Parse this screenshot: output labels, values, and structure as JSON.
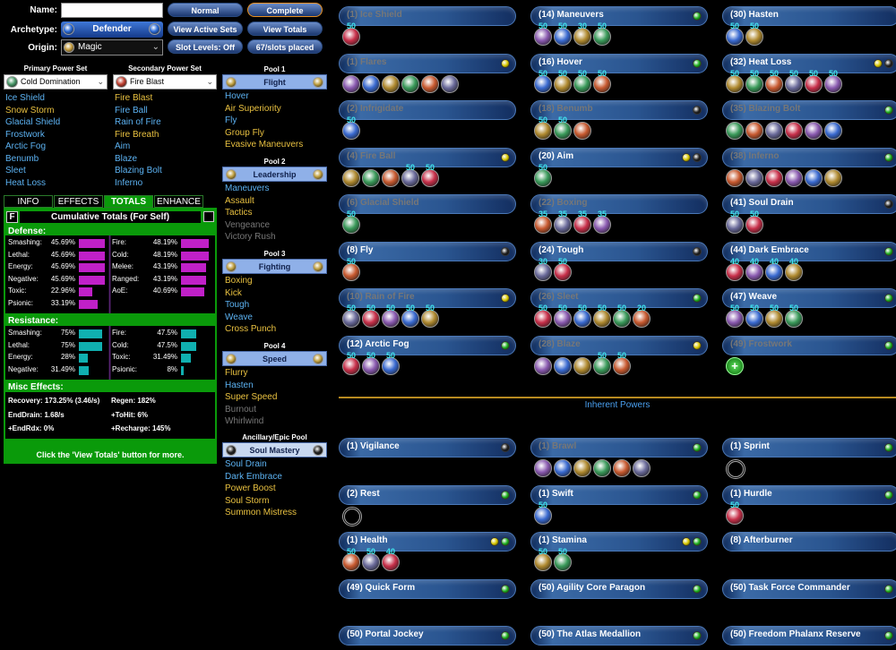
{
  "header": {
    "name_label": "Name:",
    "archetype_label": "Archetype:",
    "archetype": "Defender",
    "origin_label": "Origin:",
    "origin": "Magic"
  },
  "buttons": [
    "Normal",
    "Complete",
    "View Active Sets",
    "View Totals",
    "Slot Levels: Off",
    "67/slots placed"
  ],
  "primary": {
    "label": "Primary Power Set",
    "set": "Cold Domination",
    "powers": [
      {
        "name": "Ice Shield",
        "color": "#5cb2f2"
      },
      {
        "name": "Snow Storm",
        "color": "#e8c040"
      },
      {
        "name": "Glacial Shield",
        "color": "#5cb2f2"
      },
      {
        "name": "Frostwork",
        "color": "#5cb2f2"
      },
      {
        "name": "Arctic Fog",
        "color": "#5cb2f2"
      },
      {
        "name": "Benumb",
        "color": "#5cb2f2"
      },
      {
        "name": "Sleet",
        "color": "#5cb2f2"
      },
      {
        "name": "Heat Loss",
        "color": "#5cb2f2"
      }
    ]
  },
  "secondary": {
    "label": "Secondary Power Set",
    "set": "Fire Blast",
    "powers": [
      {
        "name": "Fire Blast",
        "color": "#e8c040"
      },
      {
        "name": "Fire Ball",
        "color": "#5cb2f2"
      },
      {
        "name": "Rain of Fire",
        "color": "#5cb2f2"
      },
      {
        "name": "Fire Breath",
        "color": "#e8c040"
      },
      {
        "name": "Aim",
        "color": "#5cb2f2"
      },
      {
        "name": "Blaze",
        "color": "#5cb2f2"
      },
      {
        "name": "Blazing Bolt",
        "color": "#5cb2f2"
      },
      {
        "name": "Inferno",
        "color": "#5cb2f2"
      }
    ]
  },
  "pools": [
    {
      "label": "Pool 1",
      "name": "Flight",
      "powers": [
        {
          "name": "Hover",
          "color": "#5cb2f2"
        },
        {
          "name": "Air Superiority",
          "color": "#e8c040"
        },
        {
          "name": "Fly",
          "color": "#5cb2f2"
        },
        {
          "name": "Group Fly",
          "color": "#e8c040"
        },
        {
          "name": "Evasive Maneuvers",
          "color": "#e8c040"
        }
      ]
    },
    {
      "label": "Pool 2",
      "name": "Leadership",
      "powers": [
        {
          "name": "Maneuvers",
          "color": "#5cb2f2"
        },
        {
          "name": "Assault",
          "color": "#e8c040"
        },
        {
          "name": "Tactics",
          "color": "#e8c040"
        },
        {
          "name": "Vengeance",
          "color": "#777777"
        },
        {
          "name": "Victory Rush",
          "color": "#777777"
        }
      ]
    },
    {
      "label": "Pool 3",
      "name": "Fighting",
      "powers": [
        {
          "name": "Boxing",
          "color": "#e8c040"
        },
        {
          "name": "Kick",
          "color": "#e8c040"
        },
        {
          "name": "Tough",
          "color": "#5cb2f2"
        },
        {
          "name": "Weave",
          "color": "#5cb2f2"
        },
        {
          "name": "Cross Punch",
          "color": "#e8c040"
        }
      ]
    },
    {
      "label": "Pool 4",
      "name": "Speed",
      "powers": [
        {
          "name": "Flurry",
          "color": "#e8c040"
        },
        {
          "name": "Hasten",
          "color": "#5cb2f2"
        },
        {
          "name": "Super Speed",
          "color": "#e8c040"
        },
        {
          "name": "Burnout",
          "color": "#777777"
        },
        {
          "name": "Whirlwind",
          "color": "#777777"
        }
      ]
    },
    {
      "label": "Ancillary/Epic Pool",
      "name": "Soul Mastery",
      "powers": [
        {
          "name": "Soul Drain",
          "color": "#5cb2f2"
        },
        {
          "name": "Dark Embrace",
          "color": "#5cb2f2"
        },
        {
          "name": "Power Boost",
          "color": "#e8c040"
        },
        {
          "name": "Soul Storm",
          "color": "#e8c040"
        },
        {
          "name": "Summon Mistress",
          "color": "#e8c040"
        }
      ]
    }
  ],
  "tabs": [
    "INFO",
    "EFFECTS",
    "TOTALS",
    "ENHANCE"
  ],
  "totals": {
    "toggle": "F",
    "title": "Cumulative Totals (For Self)",
    "defense": {
      "title": "Defense:",
      "left": [
        {
          "label": "Smashing:",
          "value": 45.69,
          "value_label": "45.69%"
        },
        {
          "label": "Lethal:",
          "value": 45.69,
          "value_label": "45.69%"
        },
        {
          "label": "Energy:",
          "value": 45.69,
          "value_label": "45.69%"
        },
        {
          "label": "Negative:",
          "value": 45.69,
          "value_label": "45.69%"
        },
        {
          "label": "Toxic:",
          "value": 22.96,
          "value_label": "22.96%"
        },
        {
          "label": "Psionic:",
          "value": 33.19,
          "value_label": "33.19%"
        }
      ],
      "right": [
        {
          "label": "Fire:",
          "value": 48.19,
          "value_label": "48.19%"
        },
        {
          "label": "Cold:",
          "value": 48.19,
          "value_label": "48.19%"
        },
        {
          "label": "Melee:",
          "value": 43.19,
          "value_label": "43.19%"
        },
        {
          "label": "Ranged:",
          "value": 43.19,
          "value_label": "43.19%"
        },
        {
          "label": "AoE:",
          "value": 40.69,
          "value_label": "40.69%"
        }
      ]
    },
    "resistance": {
      "title": "Resistance:",
      "left": [
        {
          "label": "Smashing:",
          "value": 75,
          "value_label": "75%"
        },
        {
          "label": "Lethal:",
          "value": 75,
          "value_label": "75%"
        },
        {
          "label": "Energy:",
          "value": 28,
          "value_label": "28%"
        },
        {
          "label": "Negative:",
          "value": 31.49,
          "value_label": "31.49%"
        }
      ],
      "right": [
        {
          "label": "Fire:",
          "value": 47.5,
          "value_label": "47.5%"
        },
        {
          "label": "Cold:",
          "value": 47.5,
          "value_label": "47.5%"
        },
        {
          "label": "Toxic:",
          "value": 31.49,
          "value_label": "31.49%"
        },
        {
          "label": "Psionic:",
          "value": 8,
          "value_label": "8%"
        }
      ]
    },
    "misc": {
      "title": "Misc Effects:",
      "left": [
        "Recovery: 173.25% (3.46/s)",
        "EndDrain: 1.68/s",
        "+EndRdx: 0%"
      ],
      "right": [
        "Regen: 182%",
        "+ToHit: 6%",
        "+Recharge: 145%"
      ]
    },
    "footer": "Click the 'View Totals' button for more."
  },
  "build": {
    "columns": [
      [
        {
          "name": "(1) Ice Shield",
          "color": "#777777",
          "dots": [],
          "slots": [
            50
          ]
        },
        {
          "name": "(1) Flares",
          "color": "#777777",
          "dots": [
            "#d8c800"
          ],
          "slots": [
            null,
            null,
            null,
            null,
            null,
            null
          ]
        },
        {
          "name": "(2) Infrigidate",
          "color": "#777777",
          "dots": [],
          "slots": [
            50
          ]
        },
        {
          "name": "(4) Fire Ball",
          "color": "#777777",
          "dots": [
            "#d8c800"
          ],
          "slots": [
            null,
            null,
            null,
            50,
            50
          ]
        },
        {
          "name": "(6) Glacial Shield",
          "color": "#777777",
          "dots": [],
          "slots": [
            50
          ]
        },
        {
          "name": "(8) Fly",
          "color": "#ffffff",
          "dots": [
            "#222222"
          ],
          "slots": [
            50
          ]
        },
        {
          "name": "(10) Rain of Fire",
          "color": "#777777",
          "dots": [
            "#d8c800"
          ],
          "slots": [
            50,
            50,
            50,
            50,
            50
          ]
        },
        {
          "name": "(12) Arctic Fog",
          "color": "#ffffff",
          "dots": [
            "#20b020"
          ],
          "slots": [
            50,
            50,
            50
          ]
        }
      ],
      [
        {
          "name": "(14) Maneuvers",
          "color": "#ffffff",
          "dots": [
            "#20b020"
          ],
          "slots": [
            50,
            50,
            30,
            50
          ]
        },
        {
          "name": "(16) Hover",
          "color": "#ffffff",
          "dots": [
            "#20b020"
          ],
          "slots": [
            50,
            50,
            50,
            50
          ]
        },
        {
          "name": "(18) Benumb",
          "color": "#777777",
          "dots": [
            "#222222"
          ],
          "slots": [
            50,
            50,
            null
          ]
        },
        {
          "name": "(20) Aim",
          "color": "#ffffff",
          "dots": [
            "#d8c800",
            "#222222"
          ],
          "slots": [
            50
          ]
        },
        {
          "name": "(22) Boxing",
          "color": "#777777",
          "dots": [],
          "slots": [
            35,
            35,
            35,
            35
          ]
        },
        {
          "name": "(24) Tough",
          "color": "#ffffff",
          "dots": [
            "#222222"
          ],
          "slots": [
            30,
            50
          ]
        },
        {
          "name": "(26) Sleet",
          "color": "#777777",
          "dots": [
            "#20b020"
          ],
          "slots": [
            50,
            50,
            50,
            50,
            50,
            20
          ]
        },
        {
          "name": "(28) Blaze",
          "color": "#777777",
          "dots": [
            "#d8c800"
          ],
          "slots": [
            null,
            null,
            null,
            50,
            50
          ]
        }
      ],
      [
        {
          "name": "(30) Hasten",
          "color": "#ffffff",
          "dots": [],
          "slots": [
            50,
            50
          ]
        },
        {
          "name": "(32) Heat Loss",
          "color": "#ffffff",
          "dots": [
            "#d8c800",
            "#222222"
          ],
          "slots": [
            50,
            50,
            50,
            50,
            50,
            50
          ]
        },
        {
          "name": "(35) Blazing Bolt",
          "color": "#777777",
          "dots": [
            "#20b020"
          ],
          "slots": [
            null,
            null,
            null,
            null,
            null,
            null
          ]
        },
        {
          "name": "(38) Inferno",
          "color": "#777777",
          "dots": [
            "#20b020"
          ],
          "slots": [
            null,
            null,
            null,
            null,
            null,
            null
          ]
        },
        {
          "name": "(41) Soul Drain",
          "color": "#ffffff",
          "dots": [
            "#222222"
          ],
          "slots": [
            50,
            50
          ]
        },
        {
          "name": "(44) Dark Embrace",
          "color": "#ffffff",
          "dots": [
            "#20b020"
          ],
          "slots": [
            40,
            40,
            40,
            40
          ]
        },
        {
          "name": "(47) Weave",
          "color": "#ffffff",
          "dots": [
            "#20b020"
          ],
          "slots": [
            50,
            50,
            50,
            50
          ]
        },
        {
          "name": "(49) Frostwork",
          "color": "#777777",
          "dots": [
            "#20b020"
          ],
          "slots": [
            null
          ],
          "slot_style": "plus"
        }
      ]
    ]
  },
  "inherent": {
    "title": "Inherent Powers",
    "columns": [
      [
        {
          "name": "(1) Vigilance",
          "color": "#ffffff",
          "dots": [
            "#222222"
          ],
          "slots": []
        },
        {
          "name": "(2) Rest",
          "color": "#ffffff",
          "dots": [
            "#20b020"
          ],
          "slots": [
            null
          ],
          "slot_style": "empty"
        },
        {
          "name": "(1) Health",
          "color": "#ffffff",
          "dots": [
            "#d8c800",
            "#20b020"
          ],
          "slots": [
            50,
            50,
            40
          ]
        },
        {
          "name": "(49) Quick Form",
          "color": "#ffffff",
          "dots": [
            "#20b020"
          ],
          "slots": []
        },
        {
          "name": "(50) Portal Jockey",
          "color": "#ffffff",
          "dots": [
            "#20b020"
          ],
          "slots": []
        }
      ],
      [
        {
          "name": "(1) Brawl",
          "color": "#777777",
          "dots": [
            "#20b020"
          ],
          "slots": [
            null,
            null,
            null,
            null,
            null,
            null
          ]
        },
        {
          "name": "(1) Swift",
          "color": "#ffffff",
          "dots": [
            "#20b020"
          ],
          "slots": [
            50
          ]
        },
        {
          "name": "(1) Stamina",
          "color": "#ffffff",
          "dots": [
            "#d8c800",
            "#20b020"
          ],
          "slots": [
            50,
            50
          ]
        },
        {
          "name": "(50) Agility Core Paragon",
          "color": "#ffffff",
          "dots": [
            "#20b020"
          ],
          "slots": []
        },
        {
          "name": "(50) The Atlas Medallion",
          "color": "#ffffff",
          "dots": [
            "#20b020"
          ],
          "slots": []
        }
      ],
      [
        {
          "name": "(1) Sprint",
          "color": "#ffffff",
          "dots": [
            "#20b020"
          ],
          "slots": [
            null
          ],
          "slot_style": "empty"
        },
        {
          "name": "(1) Hurdle",
          "color": "#ffffff",
          "dots": [
            "#20b020"
          ],
          "slots": [
            50
          ]
        },
        {
          "name": "(8) Afterburner",
          "color": "#ffffff",
          "dots": [],
          "slots": []
        },
        {
          "name": "(50) Task Force Commander",
          "color": "#ffffff",
          "dots": [
            "#20b020"
          ],
          "slots": []
        },
        {
          "name": "(50) Freedom Phalanx Reserve",
          "color": "#ffffff",
          "dots": [
            "#20b020"
          ],
          "slots": []
        }
      ]
    ]
  }
}
